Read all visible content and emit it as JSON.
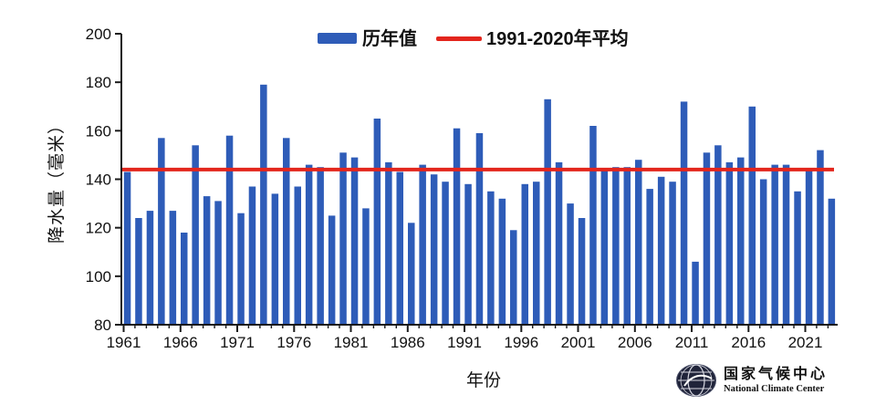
{
  "chart_data": {
    "type": "bar",
    "title": "",
    "ylabel": "降水量（毫米）",
    "xlabel": "年份",
    "ylim": [
      80,
      200
    ],
    "yticks": [
      80,
      100,
      120,
      140,
      160,
      180,
      200
    ],
    "xtick_years": [
      1961,
      1966,
      1971,
      1976,
      1981,
      1986,
      1991,
      1996,
      2001,
      2006,
      2011,
      2016,
      2021
    ],
    "grid": "off",
    "legend_position": "top",
    "series_label": "历年值",
    "average_line": {
      "label": "1991-2020年平均",
      "value": 144
    },
    "years": [
      1961,
      1962,
      1963,
      1964,
      1965,
      1966,
      1967,
      1968,
      1969,
      1970,
      1971,
      1972,
      1973,
      1974,
      1975,
      1976,
      1977,
      1978,
      1979,
      1980,
      1981,
      1982,
      1983,
      1984,
      1985,
      1986,
      1987,
      1988,
      1989,
      1990,
      1991,
      1992,
      1993,
      1994,
      1995,
      1996,
      1997,
      1998,
      1999,
      2000,
      2001,
      2002,
      2003,
      2004,
      2005,
      2006,
      2007,
      2008,
      2009,
      2010,
      2011,
      2012,
      2013,
      2014,
      2015,
      2016,
      2017,
      2018,
      2019,
      2020,
      2021,
      2022,
      2023
    ],
    "values": [
      143,
      124,
      127,
      157,
      127,
      118,
      154,
      133,
      131,
      158,
      126,
      137,
      179,
      134,
      157,
      137,
      146,
      145,
      125,
      151,
      149,
      128,
      165,
      147,
      143,
      122,
      146,
      142,
      139,
      161,
      138,
      159,
      135,
      132,
      119,
      138,
      139,
      173,
      147,
      130,
      124,
      162,
      144,
      145,
      145,
      148,
      136,
      141,
      139,
      172,
      106,
      151,
      154,
      147,
      149,
      170,
      140,
      146,
      146,
      135,
      144,
      152,
      132
    ],
    "colors": {
      "bar": "#2e5cb8",
      "line": "#e3261d",
      "axis": "#1a1a1a",
      "text": "#111111"
    }
  },
  "footer": {
    "logo_zh": "国家气候中心",
    "logo_en": "National Climate Center"
  }
}
